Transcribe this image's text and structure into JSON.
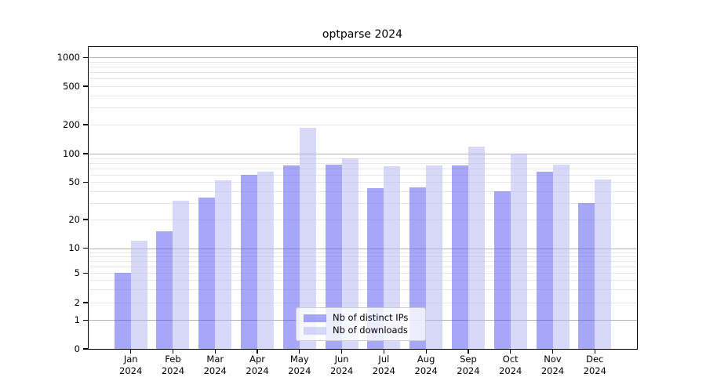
{
  "title": "optparse 2024",
  "legend": {
    "items": [
      {
        "label": "Nb of distinct IPs",
        "color": "#a8a8f7",
        "fill_rgba": "rgba(80,80,240,0.5)"
      },
      {
        "label": "Nb of downloads",
        "color": "#d8d8f8",
        "fill_rgba": "rgba(178,178,242,0.5)"
      }
    ]
  },
  "y_axis": {
    "tick_labels": [
      "0",
      "1",
      "2",
      "5",
      "10",
      "20",
      "50",
      "100",
      "200",
      "500",
      "1000"
    ]
  },
  "x_axis": {
    "tick_labels": [
      "Jan 2024",
      "Feb 2024",
      "Mar 2024",
      "Apr 2024",
      "May 2024",
      "Jun 2024",
      "Jul 2024",
      "Aug 2024",
      "Sep 2024",
      "Oct 2024",
      "Nov 2024",
      "Dec 2024"
    ]
  },
  "chart_data": {
    "type": "bar",
    "title": "optparse 2024",
    "categories": [
      "Jan 2024",
      "Feb 2024",
      "Mar 2024",
      "Apr 2024",
      "May 2024",
      "Jun 2024",
      "Jul 2024",
      "Aug 2024",
      "Sep 2024",
      "Oct 2024",
      "Nov 2024",
      "Dec 2024"
    ],
    "series": [
      {
        "name": "Nb of distinct IPs",
        "color": "#a8a8f7",
        "values": [
          5,
          15,
          34,
          60,
          75,
          77,
          43,
          44,
          75,
          40,
          65,
          30
        ]
      },
      {
        "name": "Nb of downloads",
        "color": "#d8d8f8",
        "values": [
          12,
          32,
          52,
          65,
          185,
          90,
          73,
          75,
          118,
          100,
          76,
          53
        ]
      }
    ],
    "xlabel": "",
    "ylabel": "",
    "yscale": "symlog",
    "y_ticks": [
      0,
      1,
      2,
      5,
      10,
      20,
      50,
      100,
      200,
      500,
      1000
    ],
    "ylim": [
      0,
      1000
    ],
    "grid": true,
    "legend_position": "lower center",
    "gridline_values_minor": [
      2,
      3,
      4,
      5,
      6,
      7,
      8,
      9,
      20,
      30,
      40,
      50,
      60,
      70,
      80,
      90,
      200,
      300,
      400,
      500,
      600,
      700,
      800,
      900
    ],
    "gridline_values_decade": [
      1,
      10,
      100,
      1000
    ]
  }
}
